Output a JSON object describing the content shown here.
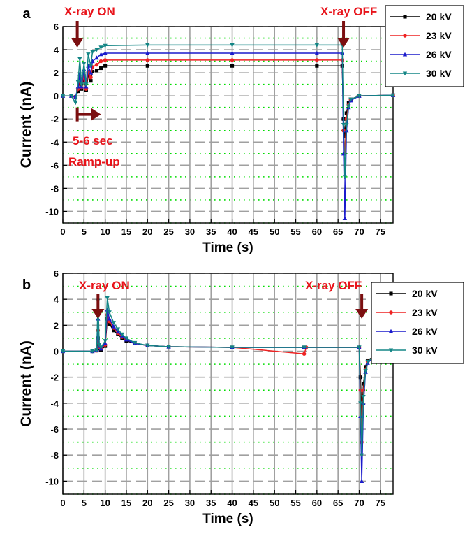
{
  "colors": {
    "arrow": "#7b0f10",
    "annotation": "#e8141b",
    "grid_major": "#a0a0a0",
    "grid_minor": "#00dd00"
  },
  "chart_data": [
    {
      "type": "line",
      "panel_label": "a",
      "xlabel": "Time (s)",
      "ylabel": "Current (nA)",
      "xlim": [
        0,
        78
      ],
      "ylim": [
        -11,
        6
      ],
      "xticks": [
        0,
        5,
        10,
        15,
        20,
        25,
        30,
        35,
        40,
        45,
        50,
        55,
        60,
        65,
        70,
        75
      ],
      "yticks": [
        -10,
        -8,
        -6,
        -4,
        -2,
        0,
        2,
        4,
        6
      ],
      "grid": true,
      "legend_position": "top-right",
      "annotations": {
        "on": "X-ray ON",
        "off": "X-ray OFF",
        "ramp_1": "5-6 sec",
        "ramp_2": "Ramp-up"
      },
      "series": [
        {
          "name": "20 kV",
          "color": "#000000",
          "marker": "square",
          "points": [
            [
              0,
              0
            ],
            [
              2,
              0
            ],
            [
              3,
              -0.1
            ],
            [
              3.6,
              0.4
            ],
            [
              4,
              1.4
            ],
            [
              4.4,
              0.6
            ],
            [
              5,
              1.5
            ],
            [
              5.5,
              0.5
            ],
            [
              6,
              1.8
            ],
            [
              6.6,
              1.3
            ],
            [
              7,
              2.1
            ],
            [
              8,
              2.2
            ],
            [
              9,
              2.4
            ],
            [
              10,
              2.6
            ],
            [
              20,
              2.6
            ],
            [
              40,
              2.6
            ],
            [
              60,
              2.6
            ],
            [
              66,
              2.6
            ],
            [
              66.3,
              -2
            ],
            [
              66.6,
              -3.5
            ],
            [
              67,
              -1.5
            ],
            [
              67.5,
              -0.6
            ],
            [
              68,
              -0.3
            ],
            [
              70,
              0
            ],
            [
              78,
              0.05
            ]
          ]
        },
        {
          "name": "23 kV",
          "color": "#ee2222",
          "marker": "circle",
          "points": [
            [
              0,
              0
            ],
            [
              2,
              0
            ],
            [
              3,
              -0.1
            ],
            [
              3.6,
              0.6
            ],
            [
              4,
              1.6
            ],
            [
              4.4,
              0.7
            ],
            [
              5,
              1.8
            ],
            [
              5.5,
              0.6
            ],
            [
              6,
              2.1
            ],
            [
              6.6,
              1.6
            ],
            [
              7,
              2.5
            ],
            [
              8,
              2.7
            ],
            [
              9,
              3.0
            ],
            [
              10,
              3.1
            ],
            [
              20,
              3.1
            ],
            [
              40,
              3.1
            ],
            [
              60,
              3.1
            ],
            [
              66,
              3.1
            ],
            [
              66.3,
              -3
            ],
            [
              66.6,
              -5
            ],
            [
              67,
              -2
            ],
            [
              67.5,
              -0.8
            ],
            [
              68,
              -0.3
            ],
            [
              70,
              0
            ],
            [
              78,
              0.05
            ]
          ]
        },
        {
          "name": "26 kV",
          "color": "#1a1acc",
          "marker": "triangle-up",
          "points": [
            [
              0,
              0
            ],
            [
              2,
              0
            ],
            [
              3,
              -0.1
            ],
            [
              3.6,
              0.8
            ],
            [
              4,
              1.9
            ],
            [
              4.4,
              0.8
            ],
            [
              5,
              2.3
            ],
            [
              5.5,
              0.8
            ],
            [
              6,
              2.6
            ],
            [
              6.6,
              2.0
            ],
            [
              7,
              3.0
            ],
            [
              8,
              3.3
            ],
            [
              9,
              3.6
            ],
            [
              10,
              3.7
            ],
            [
              20,
              3.7
            ],
            [
              40,
              3.7
            ],
            [
              60,
              3.7
            ],
            [
              66,
              3.7
            ],
            [
              66.3,
              -5
            ],
            [
              66.6,
              -10.6
            ],
            [
              67,
              -3
            ],
            [
              67.5,
              -1
            ],
            [
              68,
              -0.4
            ],
            [
              70,
              0
            ],
            [
              78,
              0.05
            ]
          ]
        },
        {
          "name": "30 kV",
          "color": "#138585",
          "marker": "triangle-down",
          "points": [
            [
              0,
              0
            ],
            [
              2,
              0
            ],
            [
              3,
              -0.6
            ],
            [
              3.6,
              1.2
            ],
            [
              4,
              3.2
            ],
            [
              4.4,
              1.0
            ],
            [
              5,
              2.8
            ],
            [
              5.5,
              1.0
            ],
            [
              6,
              3.6
            ],
            [
              6.6,
              2.6
            ],
            [
              7,
              3.8
            ],
            [
              8,
              4.0
            ],
            [
              9,
              4.2
            ],
            [
              10,
              4.35
            ],
            [
              20,
              4.4
            ],
            [
              40,
              4.4
            ],
            [
              60,
              4.4
            ],
            [
              66,
              4.4
            ],
            [
              66.3,
              -2.5
            ],
            [
              66.6,
              -7
            ],
            [
              67,
              -2.5
            ],
            [
              67.5,
              -0.9
            ],
            [
              68,
              -0.3
            ],
            [
              70,
              0
            ],
            [
              78,
              0.05
            ]
          ]
        }
      ]
    },
    {
      "type": "line",
      "panel_label": "b",
      "xlabel": "Time (s)",
      "ylabel": "Current (nA)",
      "xlim": [
        0,
        78
      ],
      "ylim": [
        -11,
        6
      ],
      "xticks": [
        0,
        5,
        10,
        15,
        20,
        25,
        30,
        35,
        40,
        45,
        50,
        55,
        60,
        65,
        70,
        75
      ],
      "yticks": [
        -10,
        -8,
        -6,
        -4,
        -2,
        0,
        2,
        4,
        6
      ],
      "grid": true,
      "legend_position": "top-right",
      "annotations": {
        "on": "X-ray ON",
        "off": "X-ray OFF"
      },
      "series": [
        {
          "name": "20 kV",
          "color": "#000000",
          "marker": "square",
          "points": [
            [
              0,
              0
            ],
            [
              7,
              0
            ],
            [
              8,
              0.05
            ],
            [
              8.3,
              1.0
            ],
            [
              8.6,
              0.2
            ],
            [
              9,
              0.1
            ],
            [
              10,
              0.4
            ],
            [
              10.5,
              2.5
            ],
            [
              11,
              2.1
            ],
            [
              12,
              1.6
            ],
            [
              13,
              1.3
            ],
            [
              14,
              1.0
            ],
            [
              15,
              0.8
            ],
            [
              17,
              0.6
            ],
            [
              20,
              0.45
            ],
            [
              25,
              0.35
            ],
            [
              40,
              0.3
            ],
            [
              57,
              0.3
            ],
            [
              70,
              0.3
            ],
            [
              70.3,
              -2
            ],
            [
              70.6,
              -5
            ],
            [
              71,
              -2.5
            ],
            [
              71.5,
              -1.2
            ],
            [
              72,
              -0.7
            ],
            [
              74,
              -0.3
            ],
            [
              78,
              -0.05
            ]
          ]
        },
        {
          "name": "23 kV",
          "color": "#ee2222",
          "marker": "circle",
          "points": [
            [
              0,
              0
            ],
            [
              7,
              0
            ],
            [
              8,
              0.05
            ],
            [
              8.3,
              1.6
            ],
            [
              8.6,
              0.3
            ],
            [
              9,
              0.2
            ],
            [
              10,
              0.5
            ],
            [
              10.5,
              2.8
            ],
            [
              11,
              2.3
            ],
            [
              12,
              1.8
            ],
            [
              13,
              1.4
            ],
            [
              14,
              1.1
            ],
            [
              15,
              0.9
            ],
            [
              17,
              0.6
            ],
            [
              20,
              0.45
            ],
            [
              25,
              0.35
            ],
            [
              40,
              0.3
            ],
            [
              57,
              -0.2
            ],
            [
              57.5,
              0.3
            ],
            [
              70,
              0.3
            ],
            [
              70.3,
              -3
            ],
            [
              70.6,
              -7
            ],
            [
              71,
              -3
            ],
            [
              71.5,
              -1.4
            ],
            [
              72,
              -0.8
            ],
            [
              74,
              -0.3
            ],
            [
              78,
              -0.05
            ]
          ]
        },
        {
          "name": "26 kV",
          "color": "#1a1acc",
          "marker": "triangle-up",
          "points": [
            [
              0,
              0
            ],
            [
              7,
              0
            ],
            [
              8,
              0.1
            ],
            [
              8.3,
              2.5
            ],
            [
              8.6,
              0.4
            ],
            [
              9,
              0.2
            ],
            [
              10,
              0.6
            ],
            [
              10.5,
              3.2
            ],
            [
              11,
              2.5
            ],
            [
              12,
              1.9
            ],
            [
              13,
              1.5
            ],
            [
              14,
              1.2
            ],
            [
              15,
              0.9
            ],
            [
              17,
              0.6
            ],
            [
              20,
              0.45
            ],
            [
              25,
              0.35
            ],
            [
              40,
              0.3
            ],
            [
              57,
              0.3
            ],
            [
              70,
              0.3
            ],
            [
              70.3,
              -5
            ],
            [
              70.6,
              -10
            ],
            [
              71,
              -4
            ],
            [
              71.5,
              -1.6
            ],
            [
              72,
              -0.9
            ],
            [
              74,
              -0.3
            ],
            [
              78,
              -0.05
            ]
          ]
        },
        {
          "name": "30 kV",
          "color": "#138585",
          "marker": "triangle-down",
          "points": [
            [
              0,
              0
            ],
            [
              7,
              0
            ],
            [
              8,
              0.1
            ],
            [
              8.3,
              3.9
            ],
            [
              8.6,
              0.5
            ],
            [
              9,
              0.3
            ],
            [
              10,
              0.8
            ],
            [
              10.5,
              4.1
            ],
            [
              11,
              3.0
            ],
            [
              12,
              2.2
            ],
            [
              13,
              1.7
            ],
            [
              14,
              1.3
            ],
            [
              15,
              1.0
            ],
            [
              17,
              0.65
            ],
            [
              20,
              0.45
            ],
            [
              25,
              0.35
            ],
            [
              40,
              0.3
            ],
            [
              57,
              0.3
            ],
            [
              70,
              0.3
            ],
            [
              70.3,
              -4
            ],
            [
              70.6,
              -8
            ],
            [
              71,
              -3.5
            ],
            [
              71.5,
              -1.5
            ],
            [
              72,
              -0.8
            ],
            [
              74,
              -0.3
            ],
            [
              78,
              -0.05
            ]
          ]
        }
      ]
    }
  ]
}
